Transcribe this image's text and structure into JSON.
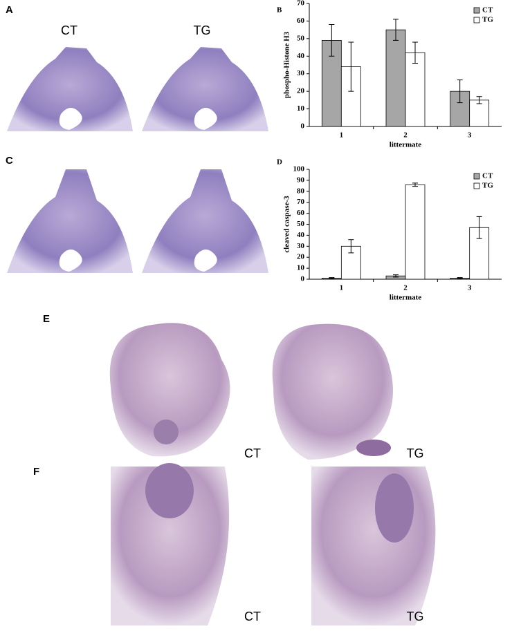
{
  "panels": [
    {
      "label": "A",
      "captions": [
        "CT",
        "TG"
      ]
    },
    {
      "label": "C"
    },
    {
      "label": "E",
      "captions": [
        "CT",
        "TG"
      ]
    },
    {
      "label": "F",
      "captions": [
        "CT",
        "TG"
      ]
    }
  ],
  "chart_data": [
    {
      "type": "bar",
      "panel_label": "B",
      "ylabel": "phospho-Histone H3",
      "xlabel": "littermate",
      "categories": [
        "1",
        "2",
        "3"
      ],
      "series": [
        {
          "name": "CT",
          "color": "#a6a6a6",
          "values": [
            49,
            55,
            20
          ],
          "errors": [
            9,
            6,
            6.5
          ]
        },
        {
          "name": "TG",
          "color": "#ffffff",
          "values": [
            34,
            42,
            15
          ],
          "errors": [
            14,
            6,
            2
          ]
        }
      ],
      "ylim": [
        0,
        70
      ],
      "yticks": [
        0,
        10,
        20,
        30,
        40,
        50,
        60,
        70
      ],
      "grid": false,
      "legend": "upper right"
    },
    {
      "type": "bar",
      "panel_label": "D",
      "ylabel": "cleaved caspase-3",
      "xlabel": "littermate",
      "categories": [
        "1",
        "2",
        "3"
      ],
      "series": [
        {
          "name": "CT",
          "color": "#a6a6a6",
          "values": [
            1,
            3,
            1
          ],
          "errors": [
            0.5,
            1,
            0.5
          ]
        },
        {
          "name": "TG",
          "color": "#ffffff",
          "values": [
            30,
            86,
            47
          ],
          "errors": [
            6,
            1.5,
            10
          ]
        }
      ],
      "ylim": [
        0,
        100
      ],
      "yticks": [
        0,
        10,
        20,
        30,
        40,
        50,
        60,
        70,
        80,
        90,
        100
      ],
      "grid": false,
      "legend": "upper right"
    }
  ]
}
